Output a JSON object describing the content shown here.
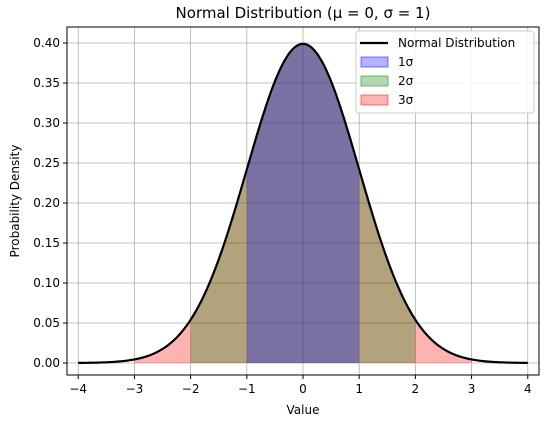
{
  "chart_data": {
    "type": "area",
    "title": "Normal Distribution (μ = 0, σ = 1)",
    "xlabel": "Value",
    "ylabel": "Probability Density",
    "xlim": [
      -4.2,
      4.2
    ],
    "ylim": [
      -0.015,
      0.42
    ],
    "xticks": [
      -4,
      -3,
      -2,
      -1,
      0,
      1,
      2,
      3,
      4
    ],
    "xtick_labels": [
      "−4",
      "−3",
      "−2",
      "−1",
      "0",
      "1",
      "2",
      "3",
      "4"
    ],
    "yticks": [
      0.0,
      0.05,
      0.1,
      0.15,
      0.2,
      0.25,
      0.3,
      0.35,
      0.4
    ],
    "ytick_labels": [
      "0.00",
      "0.05",
      "0.10",
      "0.15",
      "0.20",
      "0.25",
      "0.30",
      "0.35",
      "0.40"
    ],
    "grid": true,
    "legend_position": "top-right",
    "curve": {
      "name": "Normal Distribution",
      "color": "#000000",
      "mu": 0,
      "sigma": 1,
      "x_range": [
        -4,
        4
      ],
      "x": [
        -4.0,
        -3.5,
        -3.0,
        -2.5,
        -2.0,
        -1.5,
        -1.0,
        -0.5,
        0.0,
        0.5,
        1.0,
        1.5,
        2.0,
        2.5,
        3.0,
        3.5,
        4.0
      ],
      "y": [
        0.0001,
        0.0009,
        0.0044,
        0.0175,
        0.054,
        0.1295,
        0.242,
        0.3521,
        0.3989,
        0.3521,
        0.242,
        0.1295,
        0.054,
        0.0175,
        0.0044,
        0.0009,
        0.0001
      ]
    },
    "series": [
      {
        "name": "1σ",
        "x_range": [
          -1,
          1
        ],
        "color": "#0000ff",
        "opacity": 0.3
      },
      {
        "name": "2σ",
        "x_range": [
          -2,
          2
        ],
        "color": "#008000",
        "opacity": 0.3
      },
      {
        "name": "3σ",
        "x_range": [
          -3,
          3
        ],
        "color": "#ff0000",
        "opacity": 0.3
      }
    ]
  }
}
